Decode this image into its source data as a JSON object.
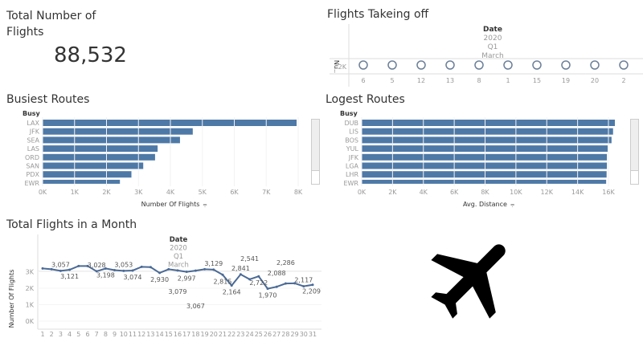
{
  "kpi": {
    "title": "Total Number of Flights",
    "value": "88,532"
  },
  "takeoff": {
    "title": "Flights Takeing off",
    "header": [
      "Date",
      "2020",
      "Q1",
      "March"
    ],
    "ylabel": "Nu..",
    "ytick": "2K",
    "days": [
      "6",
      "5",
      "12",
      "13",
      "8",
      "1",
      "15",
      "19",
      "20",
      "2"
    ]
  },
  "chart_data": [
    {
      "type": "bar",
      "title": "Busiest Routes",
      "dim_label": "Busy",
      "xlabel": "Number Of Flights",
      "categories": [
        "LAX",
        "JFK",
        "SEA",
        "LAS",
        "ORD",
        "SAN",
        "PDX",
        "EWR"
      ],
      "values": [
        7950,
        4700,
        4300,
        3600,
        3520,
        3150,
        2780,
        2420
      ],
      "xlim": [
        0,
        8000
      ],
      "ticks": [
        "0K",
        "1K",
        "2K",
        "3K",
        "4K",
        "5K",
        "6K",
        "7K",
        "8K"
      ]
    },
    {
      "type": "bar",
      "title": "Logest Routes",
      "dim_label": "Busy",
      "xlabel": "Avg. Distance",
      "categories": [
        "DUB",
        "LIS",
        "BOS",
        "YUL",
        "JFK",
        "LGA",
        "LHR",
        "EWR"
      ],
      "values": [
        16500,
        16300,
        16200,
        15950,
        15900,
        15900,
        15880,
        15850
      ],
      "xlim": [
        0,
        16000
      ],
      "ticks": [
        "0K",
        "2K",
        "4K",
        "6K",
        "8K",
        "10K",
        "12K",
        "14K",
        "16K"
      ]
    },
    {
      "type": "line",
      "title": "Total Flights in a Month",
      "header": [
        "Date",
        "2020",
        "Q1",
        "March"
      ],
      "ylabel": "Number Of Flights",
      "yticks": [
        "0K",
        "1K",
        "2K",
        "3K"
      ],
      "ylim": [
        0,
        3500
      ],
      "x": [
        "1",
        "2",
        "3",
        "4",
        "5",
        "6",
        "7",
        "8",
        "9",
        "10",
        "11",
        "12",
        "13",
        "14",
        "15",
        "16",
        "17",
        "18",
        "19",
        "20",
        "21",
        "22",
        "23",
        "24",
        "25",
        "26",
        "27",
        "28",
        "29",
        "30",
        "31"
      ],
      "values": [
        3200,
        3150,
        3057,
        3121,
        3350,
        3350,
        3028,
        3198,
        3100,
        3053,
        3074,
        3300,
        3280,
        2930,
        3150,
        3079,
        2997,
        3067,
        3150,
        3129,
        2815,
        2164,
        2841,
        2541,
        2722,
        1970,
        2088,
        2286,
        2300,
        2117,
        2209
      ],
      "labels": [
        null,
        null,
        "3,057",
        "3,121",
        null,
        null,
        "3,028",
        "3,198",
        null,
        "3,053",
        "3,074",
        null,
        null,
        "2,930",
        null,
        "3,079",
        "2,997",
        "3,067",
        null,
        "3,129",
        "2,815",
        "2,164",
        "2,841",
        "2,541",
        "2,722",
        "1,970",
        "2,088",
        "2,286",
        null,
        "2,117",
        "2,209"
      ]
    }
  ],
  "colors": {
    "bar": "#4e79a7",
    "line": "#4a6a96"
  },
  "icons": {
    "plane": "airplane-icon",
    "sort": "sort-icon"
  }
}
